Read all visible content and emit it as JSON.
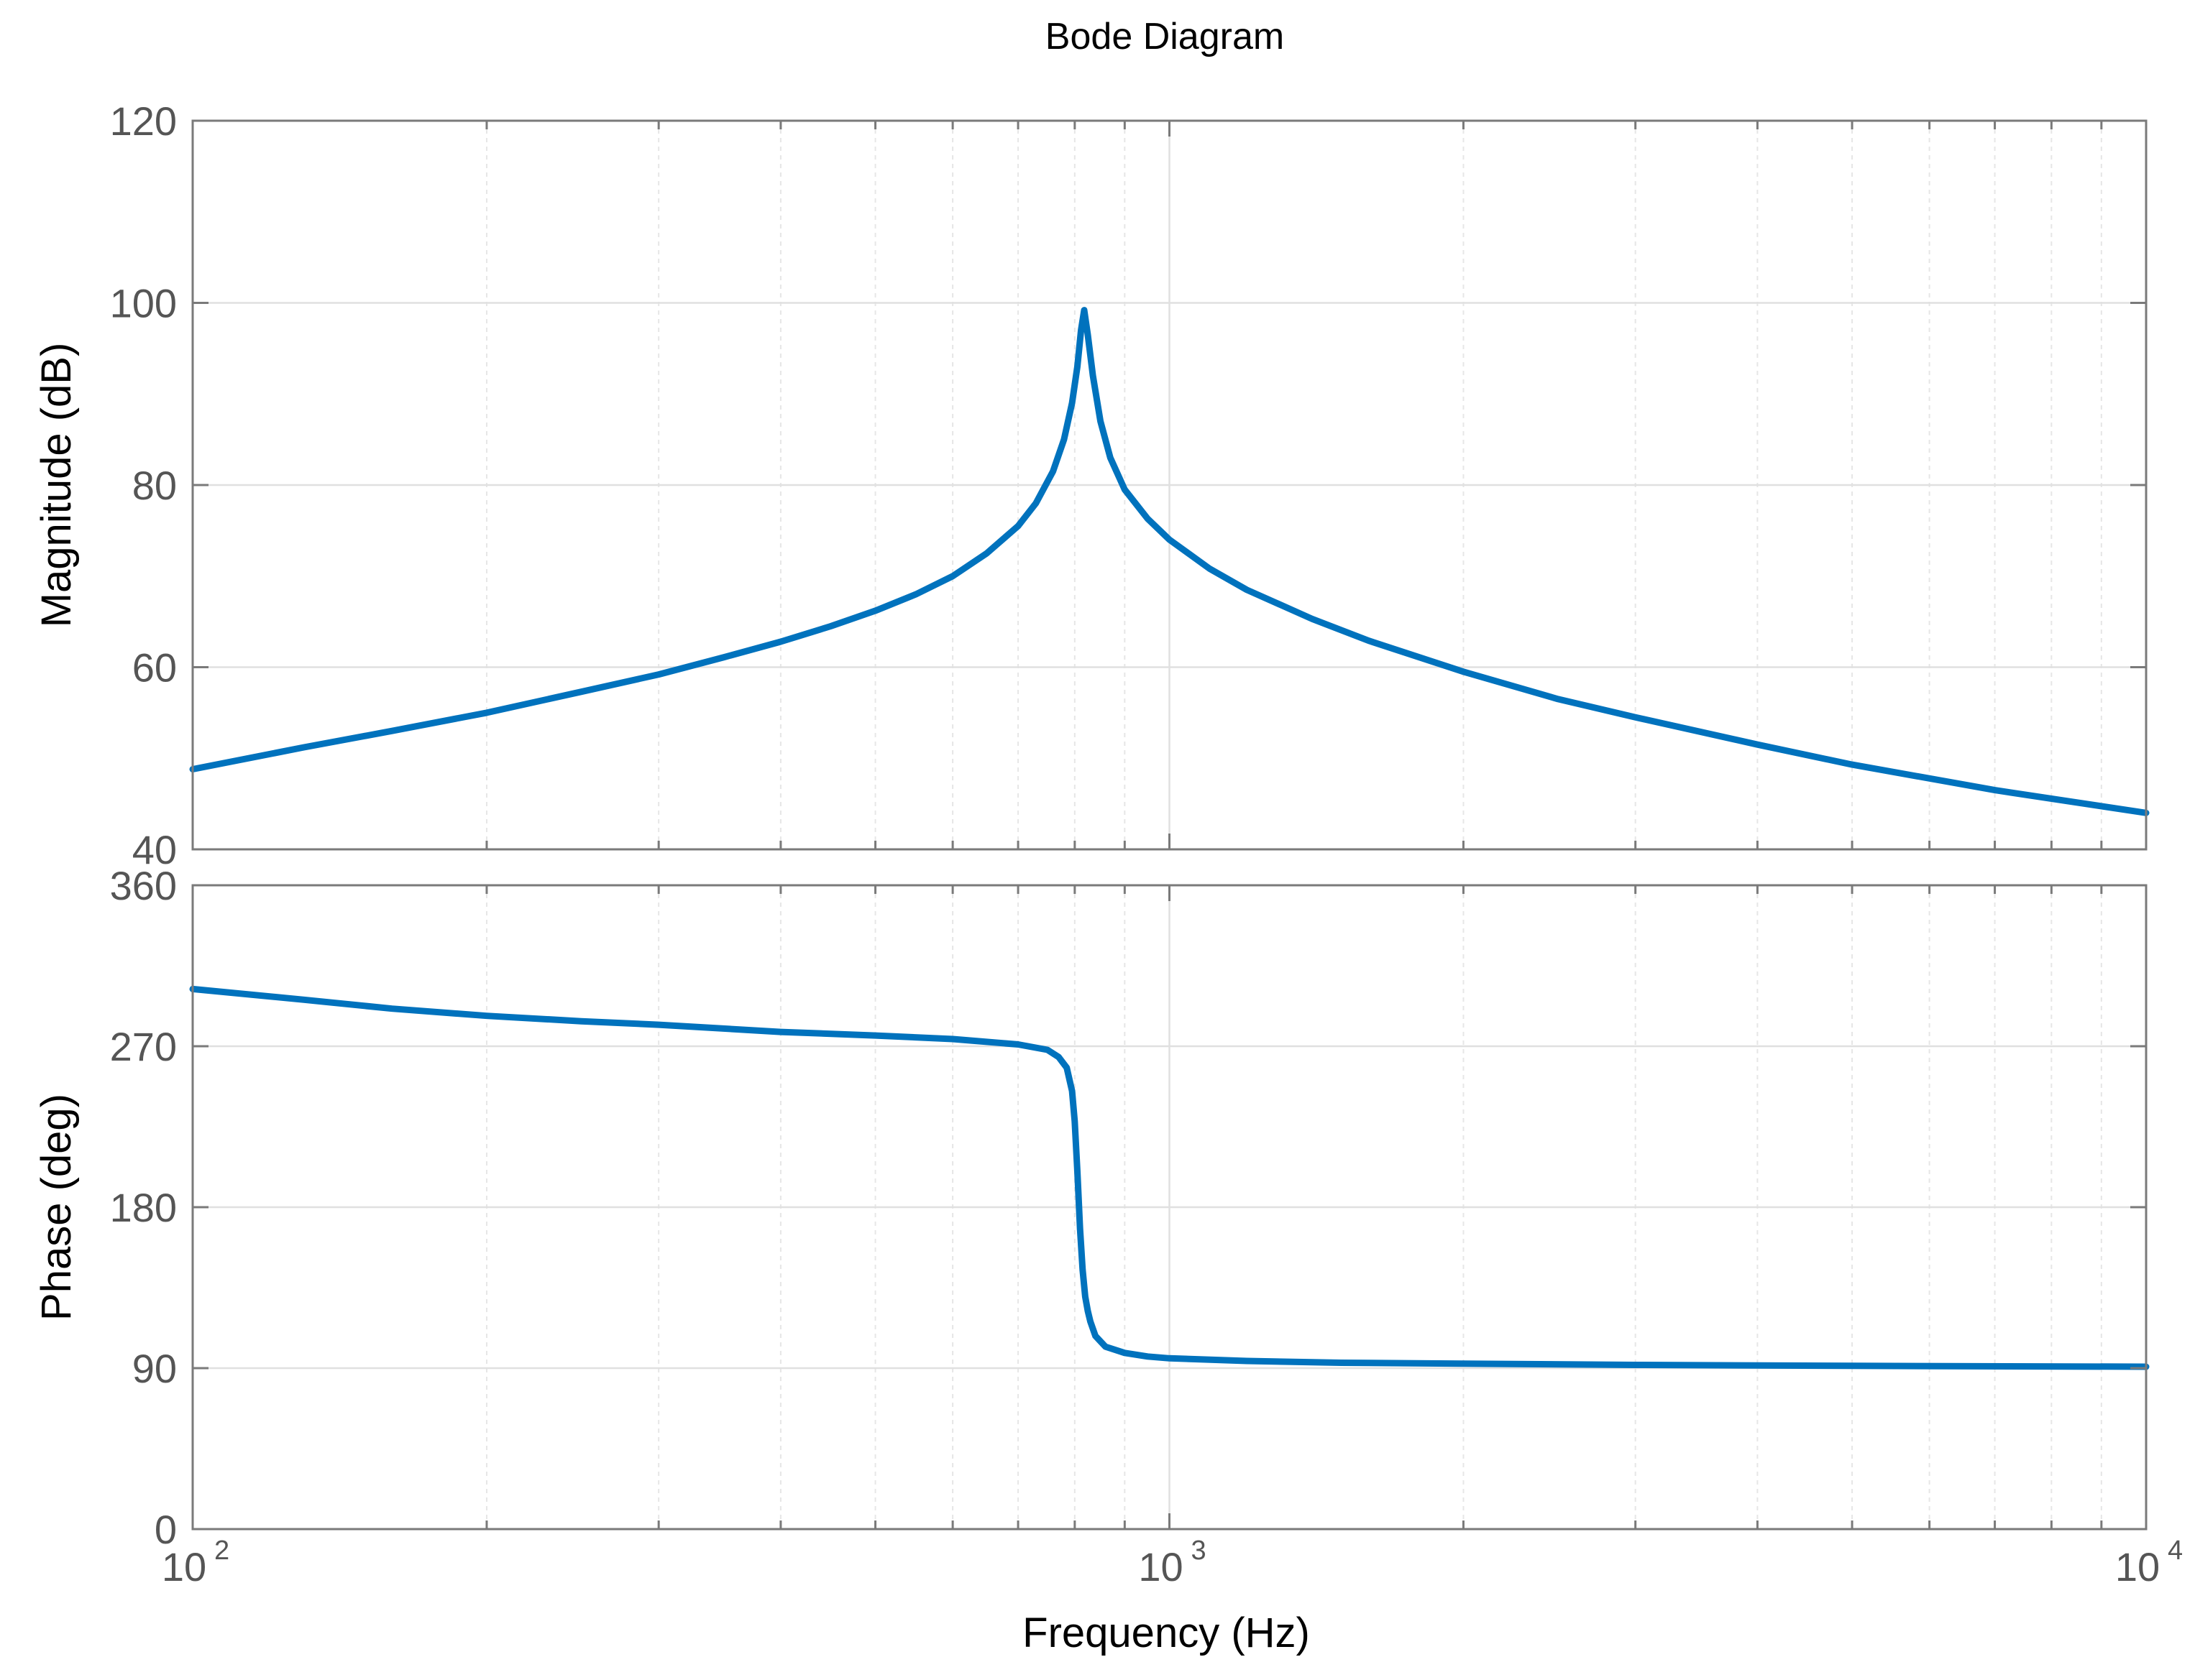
{
  "chart_data": {
    "type": "line",
    "title": "Bode Diagram",
    "xlabel": "Frequency  (Hz)",
    "xscale": "log",
    "xlim": [
      100,
      10000
    ],
    "x_ticks": [
      {
        "value": 100,
        "base": "10",
        "exp": "2"
      },
      {
        "value": 1000,
        "base": "10",
        "exp": "3"
      },
      {
        "value": 10000,
        "base": "10",
        "exp": "4"
      }
    ],
    "grid": true,
    "line_color": "#0072bd",
    "panels": [
      {
        "name": "magnitude",
        "ylabel": "Magnitude (dB)",
        "ylim": [
          40,
          120
        ],
        "y_ticks": [
          "40",
          "60",
          "80",
          "100",
          "120"
        ],
        "series": [
          {
            "x": [
              100,
              130,
              160,
              200,
              250,
              300,
              350,
              400,
              450,
              500,
              550,
              600,
              650,
              700,
              730,
              760,
              780,
              795,
              805,
              812,
              818,
              825,
              835,
              850,
              870,
              900,
              950,
              1000,
              1100,
              1200,
              1400,
              1600,
              2000,
              2500,
              3000,
              4000,
              5000,
              7000,
              10000
            ],
            "y": [
              48.8,
              51.2,
              53.0,
              55.0,
              57.3,
              59.2,
              61.1,
              62.8,
              64.5,
              66.2,
              68.0,
              70.0,
              72.5,
              75.5,
              78.0,
              81.5,
              85.0,
              89.0,
              93.0,
              97.0,
              99.2,
              96.5,
              92.0,
              87.0,
              83.0,
              79.5,
              76.3,
              74.0,
              70.8,
              68.5,
              65.3,
              62.9,
              59.5,
              56.5,
              54.5,
              51.5,
              49.3,
              46.5,
              44.0
            ]
          }
        ]
      },
      {
        "name": "phase",
        "ylabel": "Phase (deg)",
        "ylim": [
          0,
          360
        ],
        "y_ticks": [
          "0",
          "90",
          "180",
          "270",
          "360"
        ],
        "series": [
          {
            "x": [
              100,
              130,
              160,
              200,
              250,
              300,
              400,
              500,
              600,
              700,
              750,
              770,
              785,
              795,
              800,
              805,
              810,
              815,
              820,
              825,
              830,
              840,
              860,
              900,
              950,
              1000,
              1200,
              1500,
              2000,
              3000,
              5000,
              10000
            ],
            "y": [
              302,
              296,
              291,
              287,
              284,
              282,
              278,
              276,
              274,
              271,
              268,
              264,
              258,
              245,
              228,
              200,
              168,
              145,
              130,
              122,
              116,
              108,
              102,
              98.5,
              96.5,
              95.5,
              94.0,
              93.0,
              92.5,
              91.8,
              91.3,
              90.8
            ]
          }
        ]
      }
    ]
  }
}
